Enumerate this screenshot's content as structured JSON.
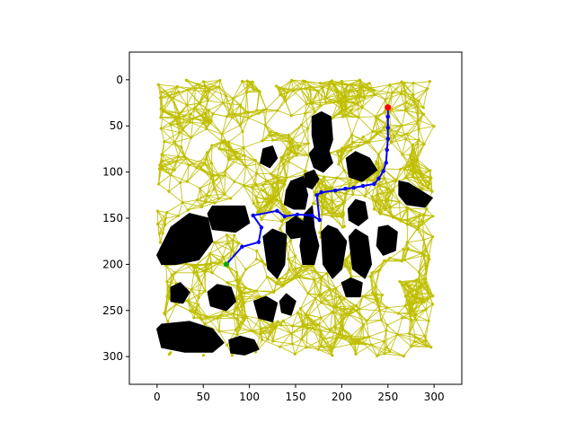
{
  "chart_data": {
    "type": "scatter",
    "title": "",
    "xlabel": "",
    "ylabel": "",
    "xlim": [
      -30,
      330
    ],
    "ylim": [
      330,
      -30
    ],
    "y_inverted": true,
    "x_ticks": [
      0,
      50,
      100,
      150,
      200,
      250,
      300
    ],
    "y_ticks": [
      0,
      50,
      100,
      150,
      200,
      250,
      300
    ],
    "x_tick_labels": [
      "0",
      "50",
      "100",
      "150",
      "200",
      "250",
      "300"
    ],
    "y_tick_labels": [
      "0",
      "50",
      "100",
      "150",
      "200",
      "250",
      "300"
    ],
    "grid": false,
    "colors": {
      "graph_nodes": "#bfbf00",
      "obstacles": "#000000",
      "path": "#0000ff",
      "start": "#00aa00",
      "goal": "#ff0000"
    },
    "start": [
      75,
      200
    ],
    "goal": [
      250,
      30
    ],
    "path": [
      [
        75,
        200
      ],
      [
        92,
        181
      ],
      [
        110,
        176
      ],
      [
        113,
        160
      ],
      [
        104,
        147
      ],
      [
        130,
        142
      ],
      [
        138,
        148
      ],
      [
        152,
        146
      ],
      [
        168,
        147
      ],
      [
        176,
        152
      ],
      [
        173,
        125
      ],
      [
        178,
        122
      ],
      [
        193,
        120
      ],
      [
        204,
        118
      ],
      [
        213,
        117
      ],
      [
        223,
        115
      ],
      [
        235,
        113
      ],
      [
        240,
        107
      ],
      [
        245,
        99
      ],
      [
        248,
        90
      ],
      [
        249,
        76
      ],
      [
        250,
        64
      ],
      [
        250,
        52
      ],
      [
        250,
        40
      ],
      [
        250,
        30
      ]
    ],
    "obstacles": [
      [
        [
          0,
          190
        ],
        [
          15,
          160
        ],
        [
          35,
          145
        ],
        [
          55,
          150
        ],
        [
          60,
          175
        ],
        [
          45,
          195
        ],
        [
          20,
          200
        ],
        [
          5,
          200
        ]
      ],
      [
        [
          55,
          145
        ],
        [
          60,
          137
        ],
        [
          95,
          137
        ],
        [
          100,
          155
        ],
        [
          85,
          165
        ],
        [
          60,
          162
        ]
      ],
      [
        [
          160,
          145
        ],
        [
          168,
          137
        ],
        [
          170,
          160
        ],
        [
          175,
          180
        ],
        [
          170,
          200
        ],
        [
          158,
          200
        ],
        [
          155,
          180
        ]
      ],
      [
        [
          178,
          165
        ],
        [
          185,
          158
        ],
        [
          195,
          162
        ],
        [
          205,
          175
        ],
        [
          200,
          205
        ],
        [
          190,
          215
        ],
        [
          180,
          200
        ]
      ],
      [
        [
          115,
          170
        ],
        [
          125,
          162
        ],
        [
          140,
          168
        ],
        [
          138,
          200
        ],
        [
          130,
          215
        ],
        [
          120,
          205
        ]
      ],
      [
        [
          208,
          170
        ],
        [
          215,
          162
        ],
        [
          228,
          170
        ],
        [
          232,
          200
        ],
        [
          225,
          215
        ],
        [
          212,
          205
        ]
      ],
      [
        [
          240,
          160
        ],
        [
          250,
          158
        ],
        [
          260,
          165
        ],
        [
          258,
          185
        ],
        [
          245,
          190
        ],
        [
          238,
          180
        ]
      ],
      [
        [
          207,
          140
        ],
        [
          215,
          130
        ],
        [
          225,
          133
        ],
        [
          228,
          150
        ],
        [
          218,
          158
        ],
        [
          208,
          152
        ]
      ],
      [
        [
          140,
          120
        ],
        [
          145,
          110
        ],
        [
          158,
          105
        ],
        [
          163,
          125
        ],
        [
          160,
          140
        ],
        [
          148,
          140
        ],
        [
          138,
          135
        ]
      ],
      [
        [
          165,
          80
        ],
        [
          172,
          72
        ],
        [
          185,
          75
        ],
        [
          190,
          90
        ],
        [
          180,
          100
        ],
        [
          170,
          95
        ]
      ],
      [
        [
          168,
          40
        ],
        [
          178,
          35
        ],
        [
          188,
          40
        ],
        [
          190,
          65
        ],
        [
          185,
          80
        ],
        [
          172,
          80
        ],
        [
          168,
          60
        ]
      ],
      [
        [
          205,
          85
        ],
        [
          215,
          78
        ],
        [
          230,
          85
        ],
        [
          238,
          98
        ],
        [
          222,
          110
        ],
        [
          208,
          105
        ]
      ],
      [
        [
          140,
          155
        ],
        [
          150,
          148
        ],
        [
          160,
          155
        ],
        [
          158,
          170
        ],
        [
          145,
          172
        ],
        [
          140,
          165
        ]
      ],
      [
        [
          262,
          110
        ],
        [
          272,
          112
        ],
        [
          285,
          120
        ],
        [
          298,
          128
        ],
        [
          290,
          138
        ],
        [
          270,
          135
        ],
        [
          262,
          125
        ]
      ],
      [
        [
          0,
          270
        ],
        [
          5,
          265
        ],
        [
          35,
          262
        ],
        [
          60,
          270
        ],
        [
          72,
          285
        ],
        [
          60,
          295
        ],
        [
          30,
          295
        ],
        [
          5,
          290
        ]
      ],
      [
        [
          55,
          230
        ],
        [
          65,
          222
        ],
        [
          80,
          225
        ],
        [
          85,
          240
        ],
        [
          75,
          250
        ],
        [
          58,
          245
        ]
      ],
      [
        [
          78,
          282
        ],
        [
          90,
          278
        ],
        [
          105,
          282
        ],
        [
          110,
          292
        ],
        [
          95,
          298
        ],
        [
          80,
          296
        ]
      ],
      [
        [
          105,
          240
        ],
        [
          118,
          235
        ],
        [
          130,
          242
        ],
        [
          125,
          262
        ],
        [
          110,
          258
        ]
      ],
      [
        [
          133,
          240
        ],
        [
          140,
          232
        ],
        [
          150,
          240
        ],
        [
          145,
          255
        ],
        [
          135,
          252
        ]
      ],
      [
        [
          200,
          220
        ],
        [
          210,
          215
        ],
        [
          222,
          220
        ],
        [
          220,
          235
        ],
        [
          205,
          235
        ]
      ],
      [
        [
          115,
          75
        ],
        [
          125,
          72
        ],
        [
          130,
          85
        ],
        [
          122,
          95
        ],
        [
          112,
          90
        ]
      ],
      [
        [
          15,
          225
        ],
        [
          25,
          220
        ],
        [
          35,
          230
        ],
        [
          28,
          242
        ],
        [
          15,
          240
        ]
      ],
      [
        [
          160,
          102
        ],
        [
          170,
          98
        ],
        [
          175,
          108
        ],
        [
          168,
          118
        ],
        [
          160,
          115
        ]
      ]
    ]
  }
}
